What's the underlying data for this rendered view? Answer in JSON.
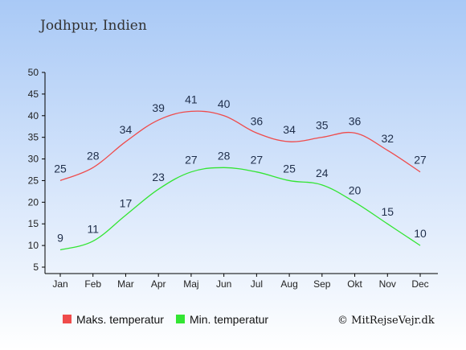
{
  "title": "Jodhpur, Indien",
  "credit": "© MitRejseVejr.dk",
  "colors": {
    "bg_top": "#a9c9f6",
    "bg_bottom": "#ffffff",
    "max": "#ef4b4b",
    "min": "#33e533"
  },
  "chart_data": {
    "type": "line",
    "title": "Jodhpur, Indien",
    "categories": [
      "Jan",
      "Feb",
      "Mar",
      "Apr",
      "Maj",
      "Jun",
      "Jul",
      "Aug",
      "Sep",
      "Okt",
      "Nov",
      "Dec"
    ],
    "y_ticks": [
      5,
      10,
      15,
      20,
      25,
      30,
      35,
      40,
      45,
      50
    ],
    "ylim": [
      5,
      50
    ],
    "grid": false,
    "legend_position": "bottom",
    "series": [
      {
        "name": "Maks. temperatur",
        "color": "#ef4b4b",
        "values": [
          25,
          28,
          34,
          39,
          41,
          40,
          36,
          34,
          35,
          36,
          32,
          27
        ]
      },
      {
        "name": "Min. temperatur",
        "color": "#33e533",
        "values": [
          9,
          11,
          17,
          23,
          27,
          28,
          27,
          25,
          24,
          20,
          15,
          10
        ]
      }
    ]
  }
}
